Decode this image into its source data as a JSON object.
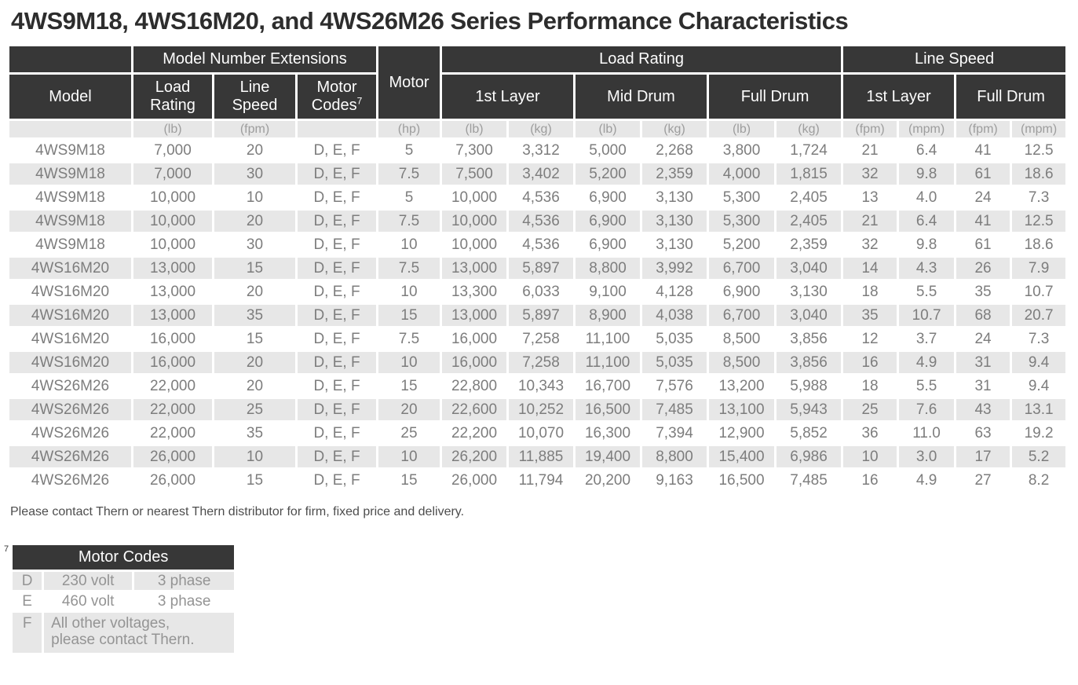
{
  "page_title": "4WS9M18, 4WS16M20, and 4WS26M26 Series Performance Characteristics",
  "colors": {
    "header_bg": "#373737",
    "header_text": "#fdfdfd",
    "alt_row_bg": "#e7e7e7",
    "data_text": "#7d7d7d",
    "units_text": "#9d9d9d",
    "title_text": "#2d2d2d",
    "note_text": "#4d4d4d"
  },
  "table": {
    "group_headers": {
      "model_number_extensions": "Model Number Extensions",
      "motor": "Motor",
      "load_rating": "Load Rating",
      "line_speed": "Line Speed"
    },
    "column_headers": {
      "model": "Model",
      "load_rating": "Load Rating",
      "line_speed": "Line Speed",
      "motor_codes": "Motor Codes",
      "motor_codes_footnote": "7",
      "load_first_layer": "1st Layer",
      "load_mid_drum": "Mid Drum",
      "load_full_drum": "Full Drum",
      "speed_first_layer": "1st Layer",
      "speed_full_drum": "Full Drum"
    },
    "units": [
      "",
      "(lb)",
      "(fpm)",
      "",
      "(hp)",
      "(lb)",
      "(kg)",
      "(lb)",
      "(kg)",
      "(lb)",
      "(kg)",
      "(fpm)",
      "(mpm)",
      "(fpm)",
      "(mpm)"
    ],
    "column_keys": [
      "model",
      "load-rating-lb",
      "line-speed-fpm",
      "motor-codes",
      "motor-hp",
      "load-1st-layer-lb",
      "load-1st-layer-kg",
      "load-mid-drum-lb",
      "load-mid-drum-kg",
      "load-full-drum-lb",
      "load-full-drum-kg",
      "speed-1st-layer-fpm",
      "speed-1st-layer-mpm",
      "speed-full-drum-fpm",
      "speed-full-drum-mpm"
    ],
    "rows": [
      [
        "4WS9M18",
        "7,000",
        "20",
        "D, E, F",
        "5",
        "7,300",
        "3,312",
        "5,000",
        "2,268",
        "3,800",
        "1,724",
        "21",
        "6.4",
        "41",
        "12.5"
      ],
      [
        "4WS9M18",
        "7,000",
        "30",
        "D, E, F",
        "7.5",
        "7,500",
        "3,402",
        "5,200",
        "2,359",
        "4,000",
        "1,815",
        "32",
        "9.8",
        "61",
        "18.6"
      ],
      [
        "4WS9M18",
        "10,000",
        "10",
        "D, E, F",
        "5",
        "10,000",
        "4,536",
        "6,900",
        "3,130",
        "5,300",
        "2,405",
        "13",
        "4.0",
        "24",
        "7.3"
      ],
      [
        "4WS9M18",
        "10,000",
        "20",
        "D, E, F",
        "7.5",
        "10,000",
        "4,536",
        "6,900",
        "3,130",
        "5,300",
        "2,405",
        "21",
        "6.4",
        "41",
        "12.5"
      ],
      [
        "4WS9M18",
        "10,000",
        "30",
        "D, E, F",
        "10",
        "10,000",
        "4,536",
        "6,900",
        "3,130",
        "5,200",
        "2,359",
        "32",
        "9.8",
        "61",
        "18.6"
      ],
      [
        "4WS16M20",
        "13,000",
        "15",
        "D, E, F",
        "7.5",
        "13,000",
        "5,897",
        "8,800",
        "3,992",
        "6,700",
        "3,040",
        "14",
        "4.3",
        "26",
        "7.9"
      ],
      [
        "4WS16M20",
        "13,000",
        "20",
        "D, E, F",
        "10",
        "13,300",
        "6,033",
        "9,100",
        "4,128",
        "6,900",
        "3,130",
        "18",
        "5.5",
        "35",
        "10.7"
      ],
      [
        "4WS16M20",
        "13,000",
        "35",
        "D, E, F",
        "15",
        "13,000",
        "5,897",
        "8,900",
        "4,038",
        "6,700",
        "3,040",
        "35",
        "10.7",
        "68",
        "20.7"
      ],
      [
        "4WS16M20",
        "16,000",
        "15",
        "D, E, F",
        "7.5",
        "16,000",
        "7,258",
        "11,100",
        "5,035",
        "8,500",
        "3,856",
        "12",
        "3.7",
        "24",
        "7.3"
      ],
      [
        "4WS16M20",
        "16,000",
        "20",
        "D, E, F",
        "10",
        "16,000",
        "7,258",
        "11,100",
        "5,035",
        "8,500",
        "3,856",
        "16",
        "4.9",
        "31",
        "9.4"
      ],
      [
        "4WS26M26",
        "22,000",
        "20",
        "D, E, F",
        "15",
        "22,800",
        "10,343",
        "16,700",
        "7,576",
        "13,200",
        "5,988",
        "18",
        "5.5",
        "31",
        "9.4"
      ],
      [
        "4WS26M26",
        "22,000",
        "25",
        "D, E, F",
        "20",
        "22,600",
        "10,252",
        "16,500",
        "7,485",
        "13,100",
        "5,943",
        "25",
        "7.6",
        "43",
        "13.1"
      ],
      [
        "4WS26M26",
        "22,000",
        "35",
        "D, E, F",
        "25",
        "22,200",
        "10,070",
        "16,300",
        "7,394",
        "12,900",
        "5,852",
        "36",
        "11.0",
        "63",
        "19.2"
      ],
      [
        "4WS26M26",
        "26,000",
        "10",
        "D, E, F",
        "10",
        "26,200",
        "11,885",
        "19,400",
        "8,800",
        "15,400",
        "6,986",
        "10",
        "3.0",
        "17",
        "5.2"
      ],
      [
        "4WS26M26",
        "26,000",
        "15",
        "D, E, F",
        "15",
        "26,000",
        "11,794",
        "20,200",
        "9,163",
        "16,500",
        "7,485",
        "16",
        "4.9",
        "27",
        "8.2"
      ]
    ]
  },
  "note": "Please contact Thern or nearest Thern distributor for firm, fixed price and delivery.",
  "motor_codes": {
    "footnote_marker": "7",
    "title": "Motor Codes",
    "rows": [
      {
        "code": "D",
        "voltage": "230 volt",
        "phase": "3 phase"
      },
      {
        "code": "E",
        "voltage": "460 volt",
        "phase": "3 phase"
      },
      {
        "code": "F",
        "description": "All other voltages,\nplease contact Thern."
      }
    ]
  }
}
